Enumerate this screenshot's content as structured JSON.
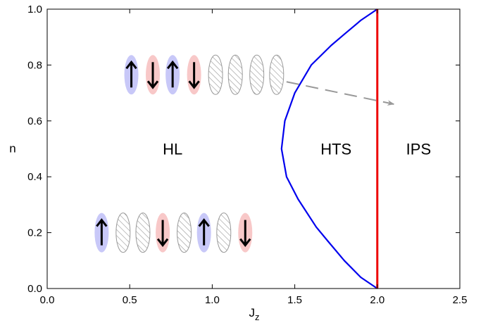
{
  "chart_data": {
    "type": "line",
    "title": "",
    "xlabel": "J",
    "xlabel_sub": "z",
    "ylabel": "n",
    "xlim": [
      0.0,
      2.5
    ],
    "ylim": [
      0.0,
      1.0
    ],
    "x_ticks": [
      "0.0",
      "0.5",
      "1.0",
      "1.5",
      "2.0",
      "2.5"
    ],
    "y_ticks": [
      "0.0",
      "0.2",
      "0.4",
      "0.6",
      "0.8",
      "1.0"
    ],
    "grid": false,
    "legend": "none",
    "series": [
      {
        "color": "#0000ee",
        "points": [
          [
            2.0,
            0.0
          ],
          [
            1.9,
            0.04
          ],
          [
            1.8,
            0.1
          ],
          [
            1.7,
            0.17
          ],
          [
            1.63,
            0.22
          ],
          [
            1.52,
            0.32
          ],
          [
            1.45,
            0.4
          ],
          [
            1.42,
            0.5
          ],
          [
            1.44,
            0.6
          ],
          [
            1.5,
            0.7
          ],
          [
            1.6,
            0.8
          ],
          [
            1.72,
            0.87
          ],
          [
            1.8,
            0.91
          ],
          [
            1.9,
            0.96
          ],
          [
            2.0,
            1.0
          ]
        ]
      },
      {
        "color": "#ee0000",
        "points": [
          [
            2.0,
            0.0
          ],
          [
            2.0,
            1.0
          ]
        ]
      }
    ],
    "annotations": [
      {
        "text": "HL",
        "x": 0.76,
        "y": 0.5
      },
      {
        "text": "HTS",
        "x": 1.75,
        "y": 0.5
      },
      {
        "text": "IPS",
        "x": 2.25,
        "y": 0.5
      }
    ],
    "arrow": {
      "from": [
        1.45,
        0.74
      ],
      "to": [
        2.1,
        0.66
      ],
      "color": "#999999",
      "style": "dashed"
    },
    "spin_chains": [
      {
        "y": 0.765,
        "x": [
          0.51,
          0.64,
          0.76,
          0.89,
          1.02,
          1.14,
          1.27,
          1.39
        ],
        "sites": [
          "up",
          "down",
          "up",
          "down",
          "empty",
          "empty",
          "empty",
          "empty"
        ]
      },
      {
        "y": 0.2,
        "x": [
          0.33,
          0.46,
          0.58,
          0.7,
          0.83,
          0.95,
          1.07,
          1.2
        ],
        "sites": [
          "up",
          "empty",
          "empty",
          "down",
          "empty",
          "up",
          "empty",
          "down"
        ]
      }
    ],
    "colors": {
      "up": "#c8c8f8",
      "down": "#f8c8c8",
      "empty_hatch": "#999999"
    }
  }
}
